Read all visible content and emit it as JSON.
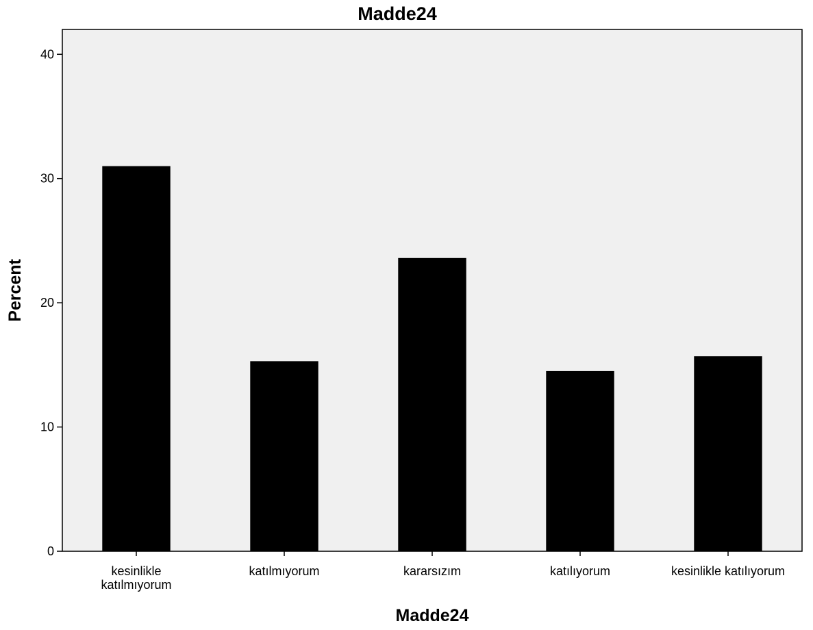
{
  "chart_data": {
    "type": "bar",
    "title": "Madde24",
    "xlabel": "Madde24",
    "ylabel": "Percent",
    "categories": [
      [
        "kesinlikle",
        "katılmıyorum"
      ],
      [
        "katılmıyorum"
      ],
      [
        "kararsızım"
      ],
      [
        "katılıyorum"
      ],
      [
        "kesinlikle katılıyorum"
      ]
    ],
    "values": [
      31.0,
      15.3,
      23.6,
      14.5,
      15.7
    ],
    "ylim": [
      0,
      42
    ],
    "yticks": [
      0,
      10,
      20,
      30,
      40
    ],
    "grid": false,
    "legend": "none",
    "colors": {
      "bar": "#000000",
      "plot_background": "#f0f0f0",
      "axis": "#000000"
    }
  }
}
